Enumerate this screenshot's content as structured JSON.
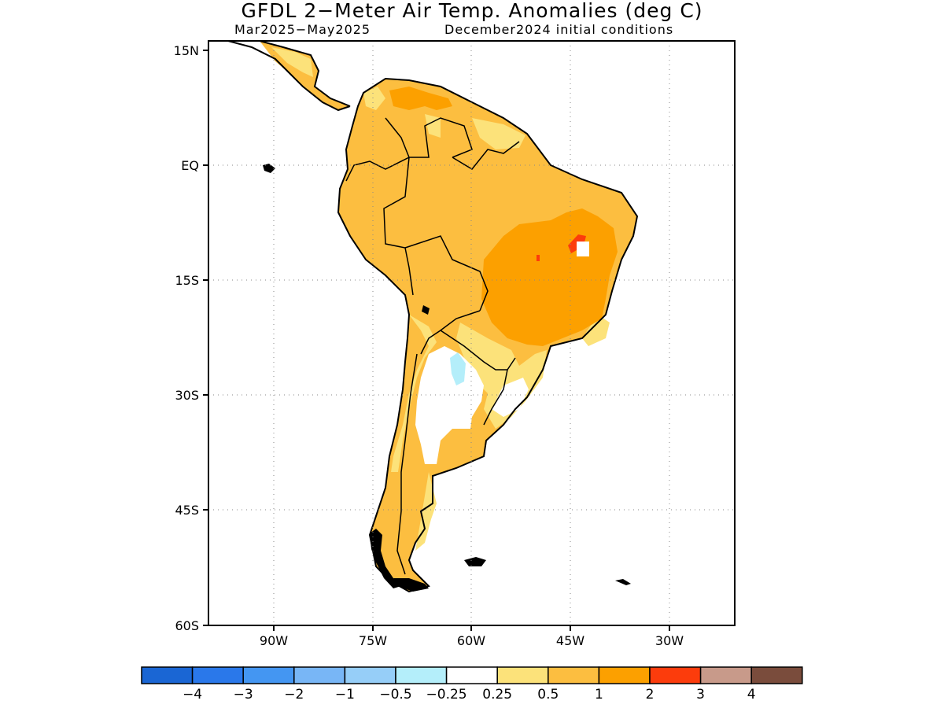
{
  "title": "GFDL 2−Meter Air Temp. Anomalies (deg C)",
  "subtitle_left": "Mar2025−May2025",
  "subtitle_right": "December2024 initial conditions",
  "axes": {
    "lat_labels": [
      "15N",
      "EQ",
      "15S",
      "30S",
      "45S",
      "60S"
    ],
    "lon_labels": [
      "90W",
      "75W",
      "60W",
      "45W",
      "30W"
    ]
  },
  "colorbar": {
    "colors": [
      "#1a66d4",
      "#2a78ea",
      "#4496f2",
      "#78b6f6",
      "#96cef8",
      "#b4eefa",
      "#ffffff",
      "#fce27a",
      "#fcbe40",
      "#fca000",
      "#fc3c0c",
      "#c89a8a",
      "#7a4c3c"
    ],
    "labels": [
      "−4",
      "−3",
      "−2",
      "−1",
      "−0.5",
      "−0.25",
      "0.25",
      "0.5",
      "1",
      "2",
      "3",
      "4"
    ]
  }
}
